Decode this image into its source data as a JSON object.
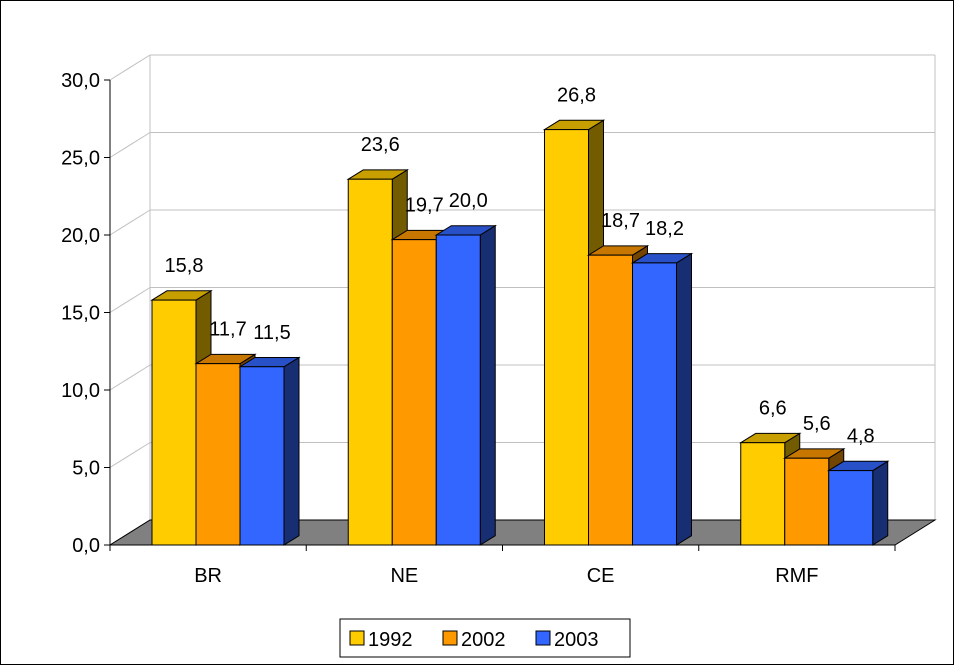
{
  "chart_data": {
    "type": "bar",
    "categories": [
      "BR",
      "NE",
      "CE",
      "RMF"
    ],
    "series": [
      {
        "name": "1992",
        "values": [
          15.8,
          23.6,
          26.8,
          6.6
        ],
        "labels": [
          "15,8",
          "23,6",
          "26,8",
          "6,6"
        ],
        "color": "#FFCC00"
      },
      {
        "name": "2002",
        "values": [
          11.7,
          19.7,
          18.7,
          5.6
        ],
        "labels": [
          "11,7",
          "19,7",
          "18,7",
          "5,6"
        ],
        "color": "#FF9900"
      },
      {
        "name": "2003",
        "values": [
          11.5,
          20.0,
          18.2,
          4.8
        ],
        "labels": [
          "11,5",
          "20,0",
          "18,2",
          "4,8"
        ],
        "color": "#3366FF"
      }
    ],
    "ylim": [
      0,
      30
    ],
    "y_ticks": [
      0,
      5,
      10,
      15,
      20,
      25,
      30
    ],
    "y_tick_labels": [
      "0,0",
      "5,0",
      "10,0",
      "15,0",
      "20,0",
      "25,0",
      "30,0"
    ],
    "grid": true,
    "legend_position": "bottom",
    "floor_color": "#808080",
    "gridline_color": "#C0C0C0"
  }
}
